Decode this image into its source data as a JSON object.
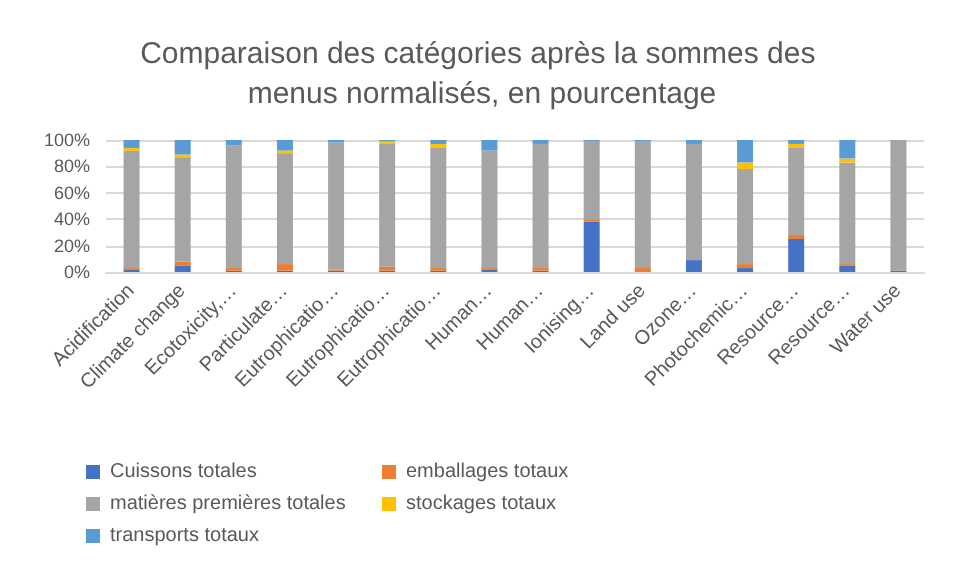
{
  "chart_data": {
    "type": "bar",
    "title": "Comparaison des catégories après la sommes des menus normalisés, en pourcentage",
    "categories": [
      "Acidification",
      "Climate change",
      "Ecotoxicity,…",
      "Particulate…",
      "Eutrophicatio…",
      "Eutrophicatio…",
      "Eutrophicatio…",
      "Human…",
      "Human…",
      "Ionising…",
      "Land use",
      "Ozone…",
      "Photochemic…",
      "Resource…",
      "Resource…",
      "Water use"
    ],
    "stacked": true,
    "ylim": [
      0,
      100
    ],
    "yticks": [
      {
        "value": 0,
        "label": "0%"
      },
      {
        "value": 20,
        "label": "20%"
      },
      {
        "value": 40,
        "label": "40%"
      },
      {
        "value": 60,
        "label": "60%"
      },
      {
        "value": 80,
        "label": "80%"
      },
      {
        "value": 100,
        "label": "100%"
      }
    ],
    "grid": "y",
    "legend": "bottom",
    "series": [
      {
        "name": "Cuissons totales",
        "color": "#4472c4",
        "values": [
          2,
          5,
          1,
          1,
          1,
          1,
          1,
          2,
          1,
          38,
          0,
          9,
          3,
          25,
          5,
          1
        ]
      },
      {
        "name": "emballages totaux",
        "color": "#ed7d31",
        "values": [
          1,
          3,
          2,
          5,
          1,
          3,
          2,
          1,
          2,
          2,
          3,
          0,
          3,
          3,
          1,
          0
        ]
      },
      {
        "name": "matières premières totales",
        "color": "#a5a5a5",
        "values": [
          89,
          79,
          93,
          84,
          96,
          93,
          91,
          89,
          94,
          59,
          96,
          88,
          72,
          66,
          77,
          99
        ]
      },
      {
        "name": "stockages totaux",
        "color": "#ffc000",
        "values": [
          2,
          2,
          0,
          2,
          0,
          2,
          3,
          0,
          0,
          0,
          0,
          0,
          5,
          3,
          3,
          0
        ]
      },
      {
        "name": "transports totaux",
        "color": "#5b9bd5",
        "values": [
          6,
          11,
          4,
          8,
          2,
          1,
          3,
          8,
          3,
          1,
          1,
          3,
          17,
          3,
          14,
          0
        ]
      }
    ]
  }
}
